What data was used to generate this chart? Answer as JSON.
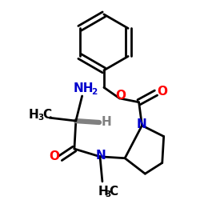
{
  "bg_color": "#ffffff",
  "bond_color": "#000000",
  "bond_lw": 2.0,
  "atom_colors": {
    "N": "#0000cd",
    "O": "#ff0000",
    "C": "#000000",
    "H": "#808080"
  },
  "fs": 11,
  "fs2": 7.5
}
